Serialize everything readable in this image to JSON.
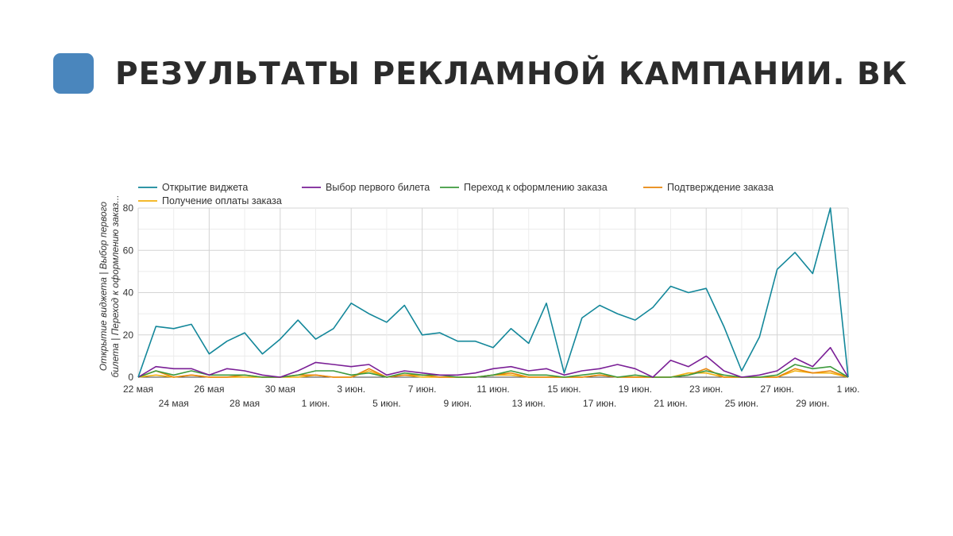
{
  "page": {
    "title": "РЕЗУЛЬТАТЫ РЕКЛАМНОЙ КАМПАНИИ. ВК",
    "icon_color": "#4a86bd"
  },
  "chart_data": {
    "type": "line",
    "ylabel_lines": [
      "Открытие виджета | Выбор первого",
      "билета | Переход к оформлению заказ..."
    ],
    "ylim": [
      0,
      80
    ],
    "yticks": [
      0,
      20,
      40,
      60,
      80
    ],
    "grid": true,
    "legend_position": "top-left",
    "x_ticks": [
      {
        "label": "22 мая",
        "index": 0,
        "row": 0
      },
      {
        "label": "24 мая",
        "index": 2,
        "row": 1
      },
      {
        "label": "26 мая",
        "index": 4,
        "row": 0
      },
      {
        "label": "28 мая",
        "index": 6,
        "row": 1
      },
      {
        "label": "30 мая",
        "index": 8,
        "row": 0
      },
      {
        "label": "1 июн.",
        "index": 10,
        "row": 1
      },
      {
        "label": "3 июн.",
        "index": 12,
        "row": 0
      },
      {
        "label": "5 июн.",
        "index": 14,
        "row": 1
      },
      {
        "label": "7 июн.",
        "index": 16,
        "row": 0
      },
      {
        "label": "9 июн.",
        "index": 18,
        "row": 1
      },
      {
        "label": "11 июн.",
        "index": 20,
        "row": 0
      },
      {
        "label": "13 июн.",
        "index": 22,
        "row": 1
      },
      {
        "label": "15 июн.",
        "index": 24,
        "row": 0
      },
      {
        "label": "17 июн.",
        "index": 26,
        "row": 1
      },
      {
        "label": "19 июн.",
        "index": 28,
        "row": 0
      },
      {
        "label": "21 июн.",
        "index": 30,
        "row": 1
      },
      {
        "label": "23 июн.",
        "index": 32,
        "row": 0
      },
      {
        "label": "25 июн.",
        "index": 34,
        "row": 1
      },
      {
        "label": "27 июн.",
        "index": 36,
        "row": 0
      },
      {
        "label": "29 июн.",
        "index": 38,
        "row": 1
      },
      {
        "label": "1 ию.",
        "index": 40,
        "row": 0
      }
    ],
    "series": [
      {
        "name": "Открытие виджета",
        "color": "#13879a",
        "values": [
          0,
          24,
          23,
          25,
          11,
          17,
          21,
          11,
          18,
          27,
          18,
          23,
          35,
          30,
          26,
          34,
          20,
          21,
          17,
          17,
          14,
          23,
          16,
          35,
          2,
          28,
          34,
          30,
          27,
          33,
          43,
          40,
          42,
          24,
          3,
          19,
          51,
          59,
          49,
          80,
          0
        ]
      },
      {
        "name": "Выбор первого билета",
        "color": "#7a1f96",
        "values": [
          0,
          5,
          4,
          4,
          1,
          4,
          3,
          1,
          0,
          3,
          7,
          6,
          5,
          6,
          1,
          3,
          2,
          1,
          1,
          2,
          4,
          5,
          3,
          4,
          1,
          3,
          4,
          6,
          4,
          0,
          8,
          5,
          10,
          3,
          0,
          1,
          3,
          9,
          5,
          14,
          0
        ]
      },
      {
        "name": "Переход к оформлению заказа",
        "color": "#3d9a3d",
        "values": [
          0,
          3,
          1,
          3,
          1,
          1,
          1,
          0,
          0,
          1,
          3,
          3,
          1,
          2,
          0,
          2,
          1,
          1,
          0,
          0,
          1,
          3,
          1,
          1,
          0,
          1,
          2,
          0,
          1,
          0,
          0,
          1,
          3,
          1,
          0,
          0,
          1,
          6,
          4,
          5,
          0
        ]
      },
      {
        "name": "Подтверждение заказа",
        "color": "#e8860c",
        "values": [
          0,
          3,
          0,
          1,
          0,
          0,
          1,
          0,
          0,
          1,
          1,
          0,
          0,
          4,
          0,
          1,
          1,
          0,
          0,
          0,
          1,
          2,
          0,
          0,
          0,
          0,
          1,
          0,
          0,
          0,
          0,
          1,
          4,
          0,
          0,
          0,
          0,
          4,
          2,
          3,
          0
        ]
      },
      {
        "name": "Получение оплаты заказа",
        "color": "#f2b10f",
        "values": [
          0,
          1,
          0,
          1,
          0,
          0,
          0,
          0,
          0,
          0,
          1,
          0,
          0,
          3,
          0,
          1,
          0,
          0,
          0,
          0,
          1,
          1,
          0,
          0,
          0,
          0,
          1,
          0,
          0,
          0,
          0,
          2,
          2,
          0,
          0,
          0,
          0,
          3,
          2,
          2,
          0
        ]
      }
    ]
  }
}
